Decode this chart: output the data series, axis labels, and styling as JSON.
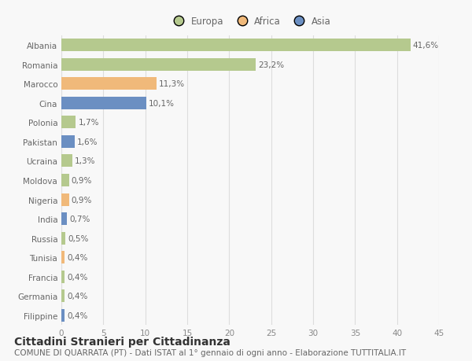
{
  "countries": [
    "Albania",
    "Romania",
    "Marocco",
    "Cina",
    "Polonia",
    "Pakistan",
    "Ucraina",
    "Moldova",
    "Nigeria",
    "India",
    "Russia",
    "Tunisia",
    "Francia",
    "Germania",
    "Filippine"
  ],
  "values": [
    41.6,
    23.2,
    11.3,
    10.1,
    1.7,
    1.6,
    1.3,
    0.9,
    0.9,
    0.7,
    0.5,
    0.4,
    0.4,
    0.4,
    0.4
  ],
  "labels": [
    "41,6%",
    "23,2%",
    "11,3%",
    "10,1%",
    "1,7%",
    "1,6%",
    "1,3%",
    "0,9%",
    "0,9%",
    "0,7%",
    "0,5%",
    "0,4%",
    "0,4%",
    "0,4%",
    "0,4%"
  ],
  "continents": [
    "Europa",
    "Europa",
    "Africa",
    "Asia",
    "Europa",
    "Asia",
    "Europa",
    "Europa",
    "Africa",
    "Asia",
    "Europa",
    "Africa",
    "Europa",
    "Europa",
    "Asia"
  ],
  "colors": {
    "Europa": "#b5c98e",
    "Africa": "#f0b97a",
    "Asia": "#6b8fc2"
  },
  "legend_labels": [
    "Europa",
    "Africa",
    "Asia"
  ],
  "xlim": [
    0,
    45
  ],
  "xticks": [
    0,
    5,
    10,
    15,
    20,
    25,
    30,
    35,
    40,
    45
  ],
  "title": "Cittadini Stranieri per Cittadinanza",
  "subtitle": "COMUNE DI QUARRATA (PT) - Dati ISTAT al 1° gennaio di ogni anno - Elaborazione TUTTITALIA.IT",
  "bg_color": "#f8f8f8",
  "grid_color": "#dddddd",
  "bar_height": 0.65,
  "title_fontsize": 10,
  "subtitle_fontsize": 7.5,
  "label_fontsize": 7.5,
  "tick_fontsize": 7.5,
  "legend_fontsize": 8.5
}
